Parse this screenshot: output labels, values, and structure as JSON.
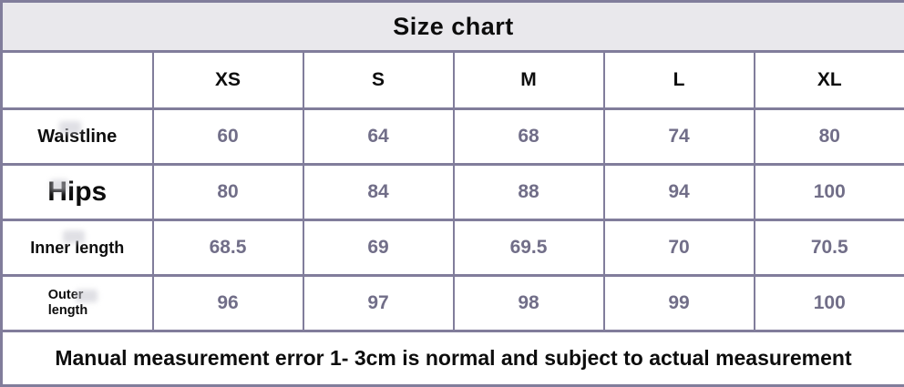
{
  "page_title": "Size chart",
  "chart_data": {
    "type": "table",
    "title": "Size chart",
    "columns": [
      "XS",
      "S",
      "M",
      "L",
      "XL"
    ],
    "rows": [
      {
        "label": "Waistline",
        "values": [
          60,
          64,
          68,
          74,
          80
        ]
      },
      {
        "label": "Hips",
        "values": [
          80,
          84,
          88,
          94,
          100
        ]
      },
      {
        "label": "Inner length",
        "values": [
          68.5,
          69,
          69.5,
          70,
          70.5
        ]
      },
      {
        "label": "Outer length",
        "values": [
          96,
          97,
          98,
          99,
          100
        ]
      }
    ],
    "note": "Manual measurement error 1- 3cm is normal and subject to actual measurement"
  },
  "colors": {
    "border": "#817d9b",
    "title_background": "#e9e8ec",
    "value_text": "#716e88",
    "heading_text": "#0d0d0d"
  }
}
